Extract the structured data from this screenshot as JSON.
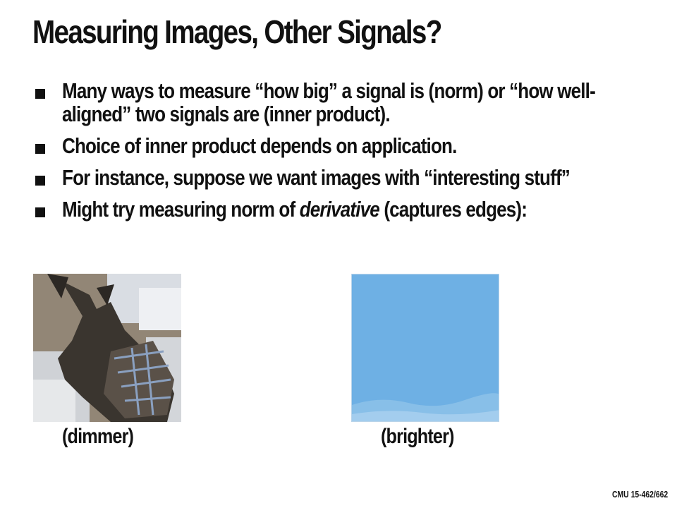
{
  "slide": {
    "title": "Measuring Images, Other Signals?",
    "bullets": [
      {
        "text": "Many ways to measure “how big” a signal is (norm) or “how well-aligned” two signals are (inner product)."
      },
      {
        "text": "Choice of inner product depends on application."
      },
      {
        "text": "For instance, suppose we want images with “interesting stuff”"
      },
      {
        "pre": "Might try measuring norm of ",
        "em": "derivative",
        "post": " (captures edges):"
      }
    ],
    "figures": {
      "left": {
        "caption": "(dimmer)"
      },
      "right": {
        "caption": "(brighter)"
      }
    },
    "footer": "CMU 15-462/662"
  }
}
